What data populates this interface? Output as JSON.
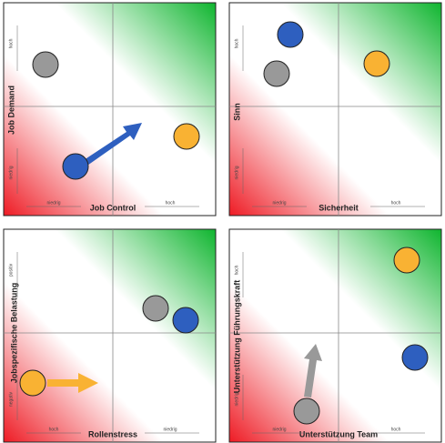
{
  "panels": [
    {
      "y_label": "Job Demand",
      "y_high": "hoch",
      "y_low": "niedrig",
      "x_label": "Job Control",
      "x_left": "niedrig",
      "x_right": "hoch"
    },
    {
      "y_label": "Sinn",
      "y_high": "hoch",
      "y_low": "niedrig",
      "x_label": "Sicherheit",
      "x_left": "niedrig",
      "x_right": "hoch"
    },
    {
      "y_label": "Jobspezifische Belastung",
      "y_high": "positiv",
      "y_low": "negativ",
      "x_label": "Rollenstress",
      "x_left": "hoch",
      "x_right": "niedrig"
    },
    {
      "y_label": "Unterstützung Führungskraft",
      "y_high": "hoch",
      "y_low": "niedrig",
      "x_label": "Unterstützung Team",
      "x_left": "niedrig",
      "x_right": "hoch"
    }
  ]
}
